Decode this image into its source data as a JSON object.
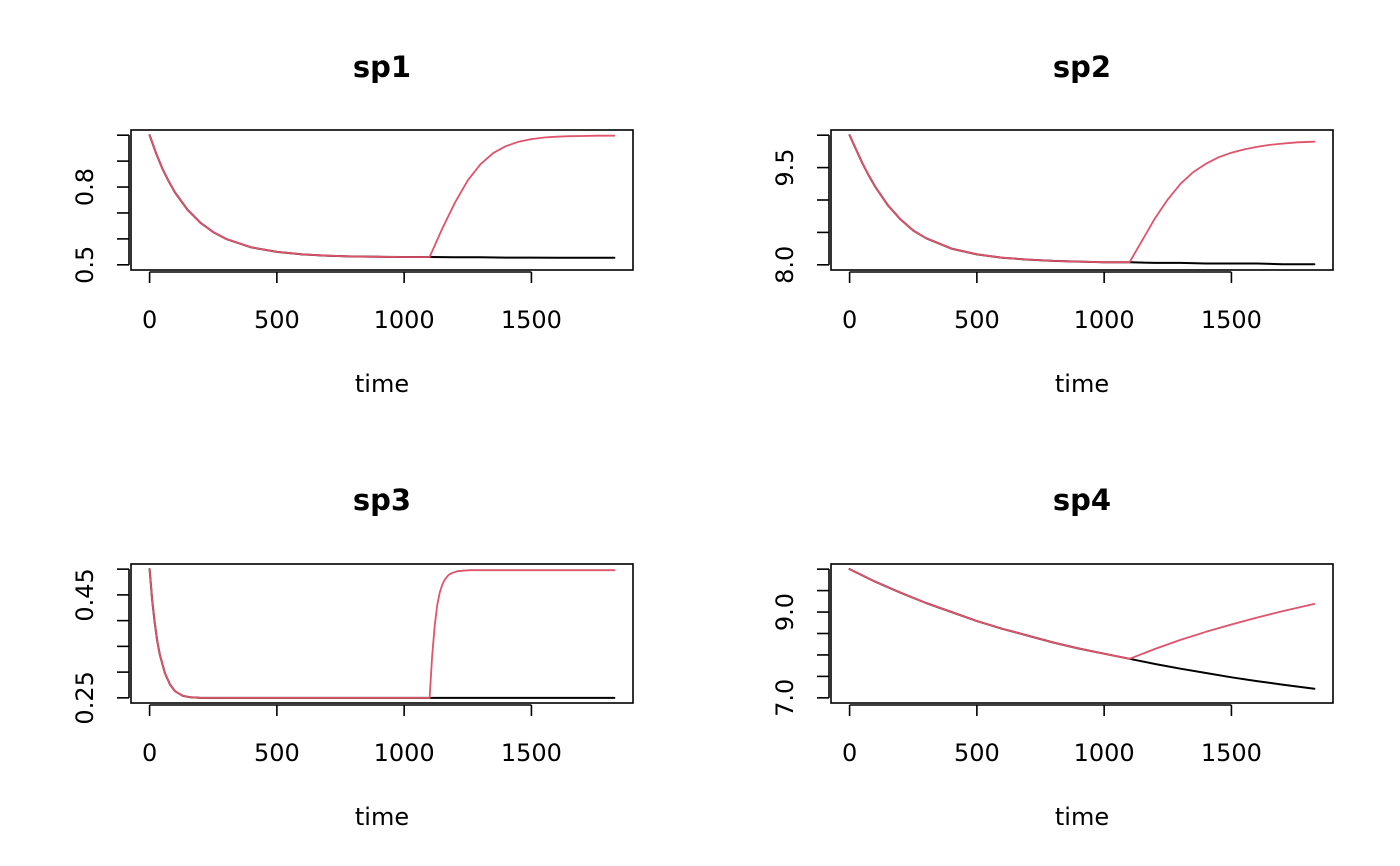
{
  "colors": {
    "baseline": "#000000",
    "scenario": "#DF536B"
  },
  "chart_data": [
    {
      "type": "line",
      "title": "sp1",
      "xlabel": "time",
      "ylabel": "",
      "xlim": [
        0,
        1826
      ],
      "ylim": [
        0.5,
        1.0
      ],
      "xticks": [
        0,
        500,
        1000,
        1500
      ],
      "xtick_labels": [
        "0",
        "500",
        "1000",
        "1500"
      ],
      "yticks": [
        0.5,
        0.6,
        0.7,
        0.8,
        0.9,
        1.0
      ],
      "ytick_labels": [
        "0.5",
        "",
        "",
        "0.8",
        "",
        ""
      ],
      "series": [
        {
          "color": "#000000",
          "x": [
            0,
            25,
            50,
            75,
            100,
            150,
            200,
            250,
            300,
            400,
            500,
            600,
            700,
            800,
            900,
            1000,
            1100,
            1200,
            1300,
            1400,
            1500,
            1600,
            1700,
            1826
          ],
          "y": [
            1.0,
            0.931,
            0.872,
            0.822,
            0.779,
            0.711,
            0.662,
            0.626,
            0.6,
            0.567,
            0.55,
            0.54,
            0.535,
            0.532,
            0.531,
            0.53,
            0.53,
            0.529,
            0.529,
            0.528,
            0.528,
            0.527,
            0.527,
            0.527
          ]
        },
        {
          "color": "#DF536B",
          "x": [
            0,
            25,
            50,
            75,
            100,
            150,
            200,
            250,
            300,
            400,
            500,
            600,
            700,
            800,
            900,
            1000,
            1100,
            1150,
            1200,
            1250,
            1300,
            1350,
            1400,
            1450,
            1500,
            1550,
            1600,
            1650,
            1700,
            1760,
            1826
          ],
          "y": [
            1.0,
            0.931,
            0.872,
            0.822,
            0.779,
            0.711,
            0.662,
            0.626,
            0.6,
            0.567,
            0.55,
            0.54,
            0.535,
            0.532,
            0.531,
            0.53,
            0.53,
            0.64,
            0.741,
            0.826,
            0.888,
            0.931,
            0.958,
            0.975,
            0.985,
            0.991,
            0.994,
            0.996,
            0.997,
            0.998,
            0.998
          ]
        }
      ]
    },
    {
      "type": "line",
      "title": "sp2",
      "xlabel": "time",
      "ylabel": "",
      "xlim": [
        0,
        1826
      ],
      "ylim": [
        8.0,
        10.0
      ],
      "xticks": [
        0,
        500,
        1000,
        1500
      ],
      "xtick_labels": [
        "0",
        "500",
        "1000",
        "1500"
      ],
      "yticks": [
        8.0,
        8.5,
        9.0,
        9.5,
        10.0
      ],
      "ytick_labels": [
        "8.0",
        "",
        "",
        "9.5",
        ""
      ],
      "series": [
        {
          "color": "#000000",
          "x": [
            0,
            25,
            50,
            75,
            100,
            150,
            200,
            250,
            300,
            400,
            500,
            600,
            700,
            800,
            900,
            1000,
            1100,
            1200,
            1300,
            1400,
            1500,
            1600,
            1700,
            1826
          ],
          "y": [
            10.0,
            9.78,
            9.57,
            9.38,
            9.21,
            8.92,
            8.7,
            8.53,
            8.41,
            8.25,
            8.16,
            8.11,
            8.08,
            8.06,
            8.05,
            8.04,
            8.04,
            8.03,
            8.03,
            8.02,
            8.02,
            8.02,
            8.01,
            8.01
          ]
        },
        {
          "color": "#DF536B",
          "x": [
            0,
            25,
            50,
            75,
            100,
            150,
            200,
            250,
            300,
            400,
            500,
            600,
            700,
            800,
            900,
            1000,
            1100,
            1150,
            1200,
            1250,
            1300,
            1350,
            1400,
            1450,
            1500,
            1550,
            1600,
            1650,
            1700,
            1760,
            1826
          ],
          "y": [
            10.0,
            9.78,
            9.57,
            9.38,
            9.21,
            8.92,
            8.7,
            8.53,
            8.41,
            8.25,
            8.16,
            8.11,
            8.08,
            8.06,
            8.05,
            8.04,
            8.04,
            8.38,
            8.72,
            9.01,
            9.25,
            9.43,
            9.56,
            9.66,
            9.73,
            9.78,
            9.82,
            9.85,
            9.87,
            9.89,
            9.9
          ]
        }
      ]
    },
    {
      "type": "line",
      "title": "sp3",
      "xlabel": "time",
      "ylabel": "",
      "xlim": [
        0,
        1826
      ],
      "ylim": [
        0.25,
        0.5
      ],
      "xticks": [
        0,
        500,
        1000,
        1500
      ],
      "xtick_labels": [
        "0",
        "500",
        "1000",
        "1500"
      ],
      "yticks": [
        0.25,
        0.3,
        0.35,
        0.4,
        0.45,
        0.5
      ],
      "ytick_labels": [
        "0.25",
        "",
        "",
        "",
        "0.45",
        ""
      ],
      "series": [
        {
          "color": "#000000",
          "x": [
            0,
            10,
            20,
            30,
            40,
            60,
            80,
            100,
            130,
            160,
            200,
            300,
            500,
            1000,
            1500,
            1826
          ],
          "y": [
            0.5,
            0.441,
            0.396,
            0.361,
            0.334,
            0.298,
            0.276,
            0.263,
            0.254,
            0.251,
            0.25,
            0.25,
            0.25,
            0.25,
            0.25,
            0.25
          ]
        },
        {
          "color": "#DF536B",
          "x": [
            0,
            10,
            20,
            30,
            40,
            60,
            80,
            100,
            130,
            160,
            200,
            300,
            500,
            1000,
            1100,
            1110,
            1120,
            1130,
            1140,
            1150,
            1160,
            1175,
            1190,
            1210,
            1230,
            1260,
            1300,
            1400,
            1600,
            1826
          ],
          "y": [
            0.5,
            0.441,
            0.396,
            0.361,
            0.334,
            0.298,
            0.276,
            0.263,
            0.254,
            0.251,
            0.25,
            0.25,
            0.25,
            0.25,
            0.25,
            0.33,
            0.39,
            0.43,
            0.455,
            0.47,
            0.48,
            0.489,
            0.493,
            0.496,
            0.497,
            0.498,
            0.498,
            0.498,
            0.498,
            0.498
          ]
        }
      ]
    },
    {
      "type": "line",
      "title": "sp4",
      "xlabel": "time",
      "ylabel": "",
      "xlim": [
        0,
        1826
      ],
      "ylim": [
        7.0,
        10.0
      ],
      "xticks": [
        0,
        500,
        1000,
        1500
      ],
      "xtick_labels": [
        "0",
        "500",
        "1000",
        "1500"
      ],
      "yticks": [
        7.0,
        7.5,
        8.0,
        8.5,
        9.0,
        9.5,
        10.0
      ],
      "ytick_labels": [
        "7.0",
        "",
        "",
        "",
        "9.0",
        "",
        ""
      ],
      "series": [
        {
          "color": "#000000",
          "x": [
            0,
            100,
            200,
            300,
            400,
            500,
            600,
            700,
            800,
            900,
            1000,
            1100,
            1200,
            1300,
            1400,
            1500,
            1600,
            1700,
            1826
          ],
          "y": [
            10.0,
            9.71,
            9.45,
            9.21,
            9.0,
            8.79,
            8.61,
            8.45,
            8.29,
            8.15,
            8.03,
            7.91,
            7.79,
            7.68,
            7.58,
            7.48,
            7.39,
            7.31,
            7.21
          ]
        },
        {
          "color": "#DF536B",
          "x": [
            0,
            100,
            200,
            300,
            400,
            500,
            600,
            700,
            800,
            900,
            1000,
            1100,
            1200,
            1300,
            1400,
            1500,
            1600,
            1700,
            1826
          ],
          "y": [
            10.0,
            9.71,
            9.45,
            9.21,
            9.0,
            8.79,
            8.61,
            8.45,
            8.29,
            8.15,
            8.03,
            7.91,
            8.14,
            8.35,
            8.54,
            8.71,
            8.87,
            9.02,
            9.19
          ]
        }
      ]
    }
  ]
}
